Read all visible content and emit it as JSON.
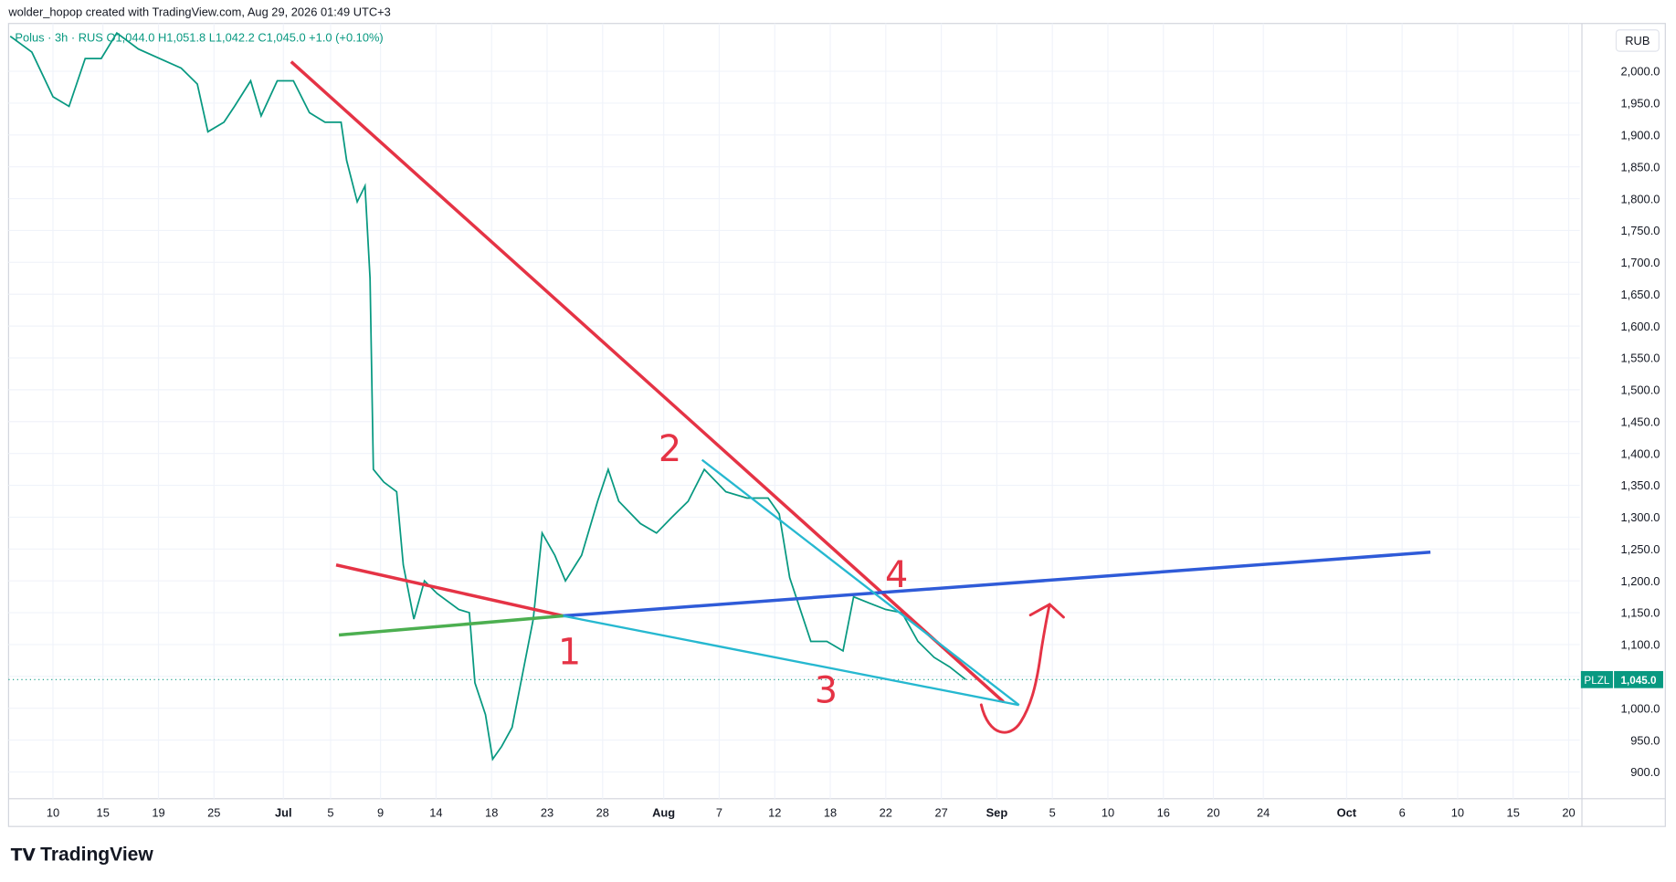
{
  "header": {
    "credit": "wolder_hopop created with TradingView.com, Aug 29, 2026 01:49 UTC+3",
    "legend": "Polus · 3h · RUS  O1,044.0  H1,051.8  L1,042.2  C1,045.0  +1.0 (+0.10%)",
    "currency": "RUB",
    "symbol": "PLZL",
    "logo": "TradingView"
  },
  "annotations": [
    "1",
    "2",
    "3",
    "4"
  ],
  "chart_data": {
    "type": "line",
    "x": [
      -7.7,
      -3.8,
      0,
      2.9,
      5.8,
      8.7,
      11.5,
      15.4,
      19.2,
      23.1,
      26,
      27.9,
      30.8,
      32.7,
      35.6,
      37.5,
      40.4,
      43.3,
      46.2,
      49,
      51.9,
      52.9,
      54.8,
      56.2,
      57.1,
      57.7,
      59.6,
      61.9,
      63.1,
      65,
      66.9,
      69.2,
      73.1,
      75,
      76,
      77.9,
      79.2,
      80.8,
      82.7,
      84.6,
      86.5,
      88.1,
      90.4,
      92.3,
      95.2,
      98.1,
      100,
      101.9,
      105.8,
      108.7,
      111.5,
      114.4,
      117.3,
      121.2,
      125,
      128.8,
      130.8,
      132.7,
      134.6,
      136.5,
      139.4,
      142.3,
      144.2,
      147.1,
      150,
      152.9,
      155.8,
      158.7,
      161.5,
      164.4
    ],
    "series": [
      {
        "name": "Polus",
        "color": "#089981",
        "values": [
          2055,
          2030,
          1960,
          1945,
          2020,
          2020,
          2060,
          2035,
          2020,
          2005,
          1980,
          1905,
          1920,
          1945,
          1985,
          1930,
          1985,
          1985,
          1935,
          1920,
          1920,
          1860,
          1795,
          1820,
          1675,
          1375,
          1355,
          1340,
          1225,
          1140,
          1200,
          1180,
          1155,
          1150,
          1040,
          990,
          920,
          940,
          970,
          1055,
          1140,
          1275,
          1240,
          1200,
          1240,
          1325,
          1375,
          1325,
          1290,
          1275,
          1300,
          1325,
          1375,
          1340,
          1330,
          1330,
          1305,
          1205,
          1155,
          1105,
          1105,
          1090,
          1175,
          1165,
          1155,
          1150,
          1105,
          1080,
          1065,
          1045
        ],
        "value_labels": {
          "69": "1,045.0"
        }
      }
    ],
    "drawings": [
      {
        "color": "#e53345",
        "points": [
          [
            42.9,
            2015
          ],
          [
            171.2,
            1010
          ]
        ]
      },
      {
        "color": "#e53345",
        "points": [
          [
            51,
            1225
          ],
          [
            91.9,
            1145
          ]
        ]
      },
      {
        "color": "#4caf50",
        "points": [
          [
            51.5,
            1115
          ],
          [
            91.9,
            1145
          ]
        ]
      },
      {
        "color": "#2f5bd8",
        "points": [
          [
            91.9,
            1145
          ],
          [
            248.1,
            1245
          ]
        ]
      },
      {
        "color": "#26b8d0",
        "points": [
          [
            91.9,
            1145
          ],
          [
            174,
            1005
          ]
        ]
      },
      {
        "color": "#26b8d0",
        "points": [
          [
            116.9,
            1390
          ],
          [
            174,
            1005
          ]
        ]
      }
    ],
    "xlim": [
      -8,
      275
    ],
    "ylim": [
      858,
      2075
    ],
    "xticks": [
      {
        "value": 0,
        "label": "10"
      },
      {
        "value": 9,
        "label": "15"
      },
      {
        "value": 19,
        "label": "19"
      },
      {
        "value": 29,
        "label": "25"
      },
      {
        "value": 41.5,
        "label": "Jul"
      },
      {
        "value": 50,
        "label": "5"
      },
      {
        "value": 59,
        "label": "9"
      },
      {
        "value": 69,
        "label": "14"
      },
      {
        "value": 79,
        "label": "18"
      },
      {
        "value": 89,
        "label": "23"
      },
      {
        "value": 99,
        "label": "28"
      },
      {
        "value": 110,
        "label": "Aug"
      },
      {
        "value": 120,
        "label": "7"
      },
      {
        "value": 130,
        "label": "12"
      },
      {
        "value": 140,
        "label": "18"
      },
      {
        "value": 150,
        "label": "22"
      },
      {
        "value": 160,
        "label": "27"
      },
      {
        "value": 170,
        "label": "Sep"
      },
      {
        "value": 180,
        "label": "5"
      },
      {
        "value": 190,
        "label": "10"
      },
      {
        "value": 200,
        "label": "16"
      },
      {
        "value": 209,
        "label": "20"
      },
      {
        "value": 218,
        "label": "24"
      },
      {
        "value": 233,
        "label": "Oct"
      },
      {
        "value": 243,
        "label": "6"
      },
      {
        "value": 253,
        "label": "10"
      },
      {
        "value": 263,
        "label": "15"
      },
      {
        "value": 273,
        "label": "20"
      }
    ],
    "yticks": [
      {
        "value": 900,
        "label": "900.0"
      },
      {
        "value": 950,
        "label": "950.0"
      },
      {
        "value": 1000,
        "label": "1,000.0"
      },
      {
        "value": 1050,
        "label": "1,050.0"
      },
      {
        "value": 1100,
        "label": "1,100.0"
      },
      {
        "value": 1150,
        "label": "1,150.0"
      },
      {
        "value": 1200,
        "label": "1,200.0"
      },
      {
        "value": 1250,
        "label": "1,250.0"
      },
      {
        "value": 1300,
        "label": "1,300.0"
      },
      {
        "value": 1350,
        "label": "1,350.0"
      },
      {
        "value": 1400,
        "label": "1,400.0"
      },
      {
        "value": 1450,
        "label": "1,450.0"
      },
      {
        "value": 1500,
        "label": "1,500.0"
      },
      {
        "value": 1550,
        "label": "1,550.0"
      },
      {
        "value": 1600,
        "label": "1,600.0"
      },
      {
        "value": 1650,
        "label": "1,650.0"
      },
      {
        "value": 1700,
        "label": "1,700.0"
      },
      {
        "value": 1750,
        "label": "1,750.0"
      },
      {
        "value": 1800,
        "label": "1,800.0"
      },
      {
        "value": 1850,
        "label": "1,850.0"
      },
      {
        "value": 1900,
        "label": "1,900.0"
      },
      {
        "value": 1950,
        "label": "1,950.0"
      },
      {
        "value": 2000,
        "label": "2,000.0"
      }
    ],
    "grid": true
  }
}
